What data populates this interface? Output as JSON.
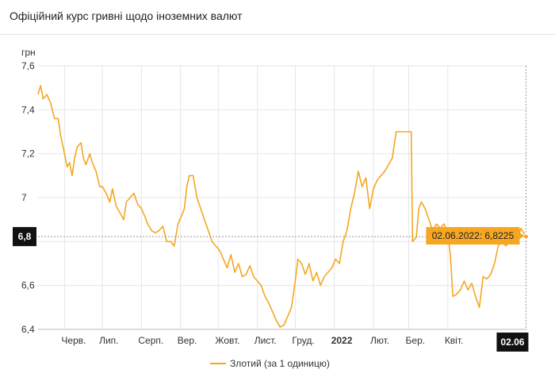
{
  "header": {
    "title": "Офіційний курс гривні щодо іноземних валют"
  },
  "chart_data": {
    "type": "line",
    "title": "Офіційний курс гривні щодо іноземних валют",
    "ylabel": "грн",
    "xlabel": "",
    "ylim": [
      6.4,
      7.6
    ],
    "yticks": [
      "6,4",
      "6,6",
      "6,8",
      "7",
      "7,2",
      "7,4",
      "7,6"
    ],
    "ytick_values": [
      6.4,
      6.6,
      6.8,
      7.0,
      7.2,
      7.4,
      7.6
    ],
    "x_tick_labels": [
      "Черв.",
      "Лип.",
      "Серп.",
      "Вер.",
      "Жовт.",
      "Лист.",
      "Груд.",
      "2022",
      "Лют.",
      "Бер.",
      "Квіт."
    ],
    "x_tick_dates": [
      "2021-06-01",
      "2021-07-01",
      "2021-08-01",
      "2021-09-01",
      "2021-10-01",
      "2021-11-01",
      "2021-12-01",
      "2022-01-01",
      "2022-02-01",
      "2022-03-01",
      "2022-04-01"
    ],
    "x_range": [
      "2021-05-11",
      "2022-06-03"
    ],
    "grid": true,
    "legend_position": "bottom",
    "color": "#f5a623",
    "series": [
      {
        "name": "Злотий (за 1 одиницю)",
        "points": [
          [
            "2021-05-11",
            7.47
          ],
          [
            "2021-05-13",
            7.51
          ],
          [
            "2021-05-15",
            7.45
          ],
          [
            "2021-05-18",
            7.47
          ],
          [
            "2021-05-21",
            7.43
          ],
          [
            "2021-05-24",
            7.36
          ],
          [
            "2021-05-27",
            7.36
          ],
          [
            "2021-05-29",
            7.28
          ],
          [
            "2021-06-01",
            7.2
          ],
          [
            "2021-06-03",
            7.14
          ],
          [
            "2021-06-05",
            7.16
          ],
          [
            "2021-06-07",
            7.1
          ],
          [
            "2021-06-09",
            7.18
          ],
          [
            "2021-06-11",
            7.23
          ],
          [
            "2021-06-14",
            7.25
          ],
          [
            "2021-06-16",
            7.18
          ],
          [
            "2021-06-18",
            7.15
          ],
          [
            "2021-06-21",
            7.2
          ],
          [
            "2021-06-23",
            7.16
          ],
          [
            "2021-06-26",
            7.12
          ],
          [
            "2021-06-29",
            7.05
          ],
          [
            "2021-07-01",
            7.05
          ],
          [
            "2021-07-04",
            7.02
          ],
          [
            "2021-07-07",
            6.98
          ],
          [
            "2021-07-09",
            7.04
          ],
          [
            "2021-07-12",
            6.96
          ],
          [
            "2021-07-15",
            6.93
          ],
          [
            "2021-07-18",
            6.9
          ],
          [
            "2021-07-20",
            6.98
          ],
          [
            "2021-07-23",
            7.0
          ],
          [
            "2021-07-26",
            7.02
          ],
          [
            "2021-07-29",
            6.97
          ],
          [
            "2021-08-01",
            6.95
          ],
          [
            "2021-08-04",
            6.91
          ],
          [
            "2021-08-06",
            6.88
          ],
          [
            "2021-08-09",
            6.85
          ],
          [
            "2021-08-12",
            6.84
          ],
          [
            "2021-08-15",
            6.85
          ],
          [
            "2021-08-18",
            6.87
          ],
          [
            "2021-08-21",
            6.8
          ],
          [
            "2021-08-24",
            6.8
          ],
          [
            "2021-08-27",
            6.78
          ],
          [
            "2021-08-30",
            6.88
          ],
          [
            "2021-09-02",
            6.92
          ],
          [
            "2021-09-04",
            6.95
          ],
          [
            "2021-09-06",
            7.05
          ],
          [
            "2021-09-08",
            7.1
          ],
          [
            "2021-09-11",
            7.1
          ],
          [
            "2021-09-14",
            7.0
          ],
          [
            "2021-09-17",
            6.95
          ],
          [
            "2021-09-20",
            6.9
          ],
          [
            "2021-09-23",
            6.85
          ],
          [
            "2021-09-26",
            6.8
          ],
          [
            "2021-09-29",
            6.78
          ],
          [
            "2021-10-02",
            6.76
          ],
          [
            "2021-10-05",
            6.72
          ],
          [
            "2021-10-08",
            6.68
          ],
          [
            "2021-10-11",
            6.74
          ],
          [
            "2021-10-14",
            6.66
          ],
          [
            "2021-10-17",
            6.7
          ],
          [
            "2021-10-20",
            6.64
          ],
          [
            "2021-10-23",
            6.65
          ],
          [
            "2021-10-26",
            6.69
          ],
          [
            "2021-10-29",
            6.64
          ],
          [
            "2021-11-01",
            6.62
          ],
          [
            "2021-11-04",
            6.6
          ],
          [
            "2021-11-07",
            6.55
          ],
          [
            "2021-11-10",
            6.52
          ],
          [
            "2021-11-13",
            6.48
          ],
          [
            "2021-11-16",
            6.44
          ],
          [
            "2021-11-19",
            6.41
          ],
          [
            "2021-11-22",
            6.42
          ],
          [
            "2021-11-25",
            6.46
          ],
          [
            "2021-11-28",
            6.5
          ],
          [
            "2021-12-01",
            6.62
          ],
          [
            "2021-12-03",
            6.72
          ],
          [
            "2021-12-06",
            6.7
          ],
          [
            "2021-12-09",
            6.65
          ],
          [
            "2021-12-12",
            6.7
          ],
          [
            "2021-12-15",
            6.62
          ],
          [
            "2021-12-18",
            6.66
          ],
          [
            "2021-12-21",
            6.6
          ],
          [
            "2021-12-24",
            6.64
          ],
          [
            "2021-12-27",
            6.66
          ],
          [
            "2021-12-30",
            6.68
          ],
          [
            "2022-01-02",
            6.72
          ],
          [
            "2022-01-05",
            6.7
          ],
          [
            "2022-01-08",
            6.8
          ],
          [
            "2022-01-11",
            6.85
          ],
          [
            "2022-01-14",
            6.95
          ],
          [
            "2022-01-17",
            7.02
          ],
          [
            "2022-01-20",
            7.12
          ],
          [
            "2022-01-23",
            7.05
          ],
          [
            "2022-01-26",
            7.09
          ],
          [
            "2022-01-29",
            6.95
          ],
          [
            "2022-02-01",
            7.04
          ],
          [
            "2022-02-04",
            7.08
          ],
          [
            "2022-02-07",
            7.1
          ],
          [
            "2022-02-10",
            7.12
          ],
          [
            "2022-02-13",
            7.15
          ],
          [
            "2022-02-16",
            7.18
          ],
          [
            "2022-02-19",
            7.3
          ],
          [
            "2022-02-22",
            7.3
          ],
          [
            "2022-02-25",
            7.3
          ],
          [
            "2022-03-01",
            7.3
          ],
          [
            "2022-03-03",
            7.3
          ],
          [
            "2022-03-04",
            6.8
          ],
          [
            "2022-03-07",
            6.82
          ],
          [
            "2022-03-09",
            6.95
          ],
          [
            "2022-03-11",
            6.98
          ],
          [
            "2022-03-14",
            6.95
          ],
          [
            "2022-03-17",
            6.9
          ],
          [
            "2022-03-20",
            6.85
          ],
          [
            "2022-03-23",
            6.88
          ],
          [
            "2022-03-26",
            6.86
          ],
          [
            "2022-03-29",
            6.88
          ],
          [
            "2022-04-01",
            6.84
          ],
          [
            "2022-04-03",
            6.74
          ],
          [
            "2022-04-05",
            6.55
          ],
          [
            "2022-04-08",
            6.56
          ],
          [
            "2022-04-11",
            6.58
          ],
          [
            "2022-04-14",
            6.62
          ],
          [
            "2022-04-17",
            6.58
          ],
          [
            "2022-04-20",
            6.61
          ],
          [
            "2022-04-23",
            6.55
          ],
          [
            "2022-04-26",
            6.5
          ],
          [
            "2022-04-29",
            6.64
          ],
          [
            "2022-05-02",
            6.63
          ],
          [
            "2022-05-05",
            6.65
          ],
          [
            "2022-05-08",
            6.7
          ],
          [
            "2022-05-11",
            6.78
          ],
          [
            "2022-05-14",
            6.8
          ],
          [
            "2022-05-17",
            6.78
          ],
          [
            "2022-05-20",
            6.8
          ],
          [
            "2022-05-23",
            6.82
          ],
          [
            "2022-05-26",
            6.81
          ],
          [
            "2022-05-29",
            6.86
          ],
          [
            "2022-06-02",
            6.8225
          ]
        ]
      }
    ],
    "highlight": {
      "label": "02.06.2022: 6,8225",
      "y_badge": "6,8",
      "x_badge": "02.06",
      "date": "2022-06-02",
      "value": 6.8225
    }
  }
}
